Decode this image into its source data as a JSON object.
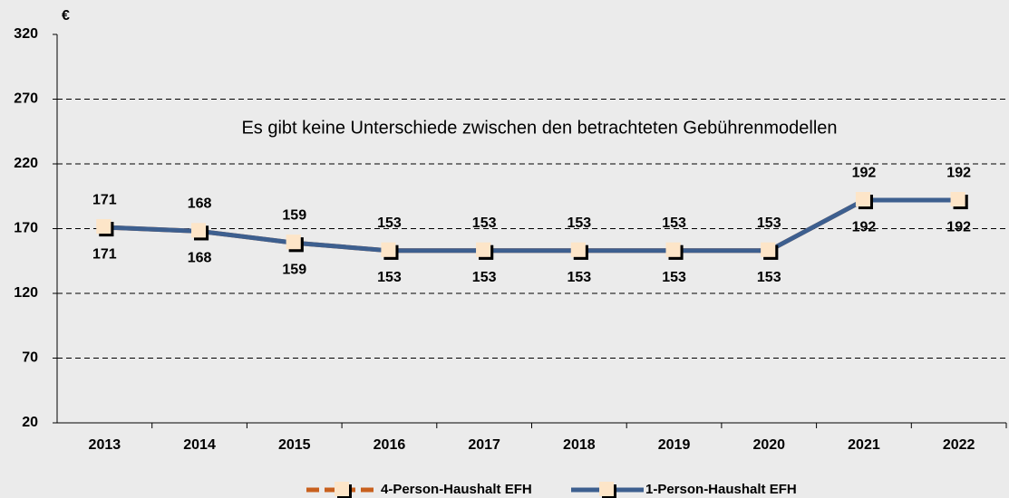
{
  "chart_data": {
    "type": "line",
    "y_unit_label": "€",
    "annotation": "Es gibt keine Unterschiede zwischen den betrachteten Gebührenmodellen",
    "categories": [
      "2013",
      "2014",
      "2015",
      "2016",
      "2017",
      "2018",
      "2019",
      "2020",
      "2021",
      "2022"
    ],
    "series": [
      {
        "name": "4-Person-Haushalt EFH",
        "color": "#c8601e",
        "values": [
          171,
          168,
          159,
          153,
          153,
          153,
          153,
          153,
          192,
          192
        ]
      },
      {
        "name": "1-Person-Haushalt EFH",
        "color": "#3d5f8f",
        "values": [
          171,
          168,
          159,
          153,
          153,
          153,
          153,
          153,
          192,
          192
        ]
      }
    ],
    "ylim": [
      20,
      320
    ],
    "yticks": [
      20,
      70,
      120,
      170,
      220,
      270,
      320
    ],
    "grid": true,
    "legend": "bottom"
  }
}
